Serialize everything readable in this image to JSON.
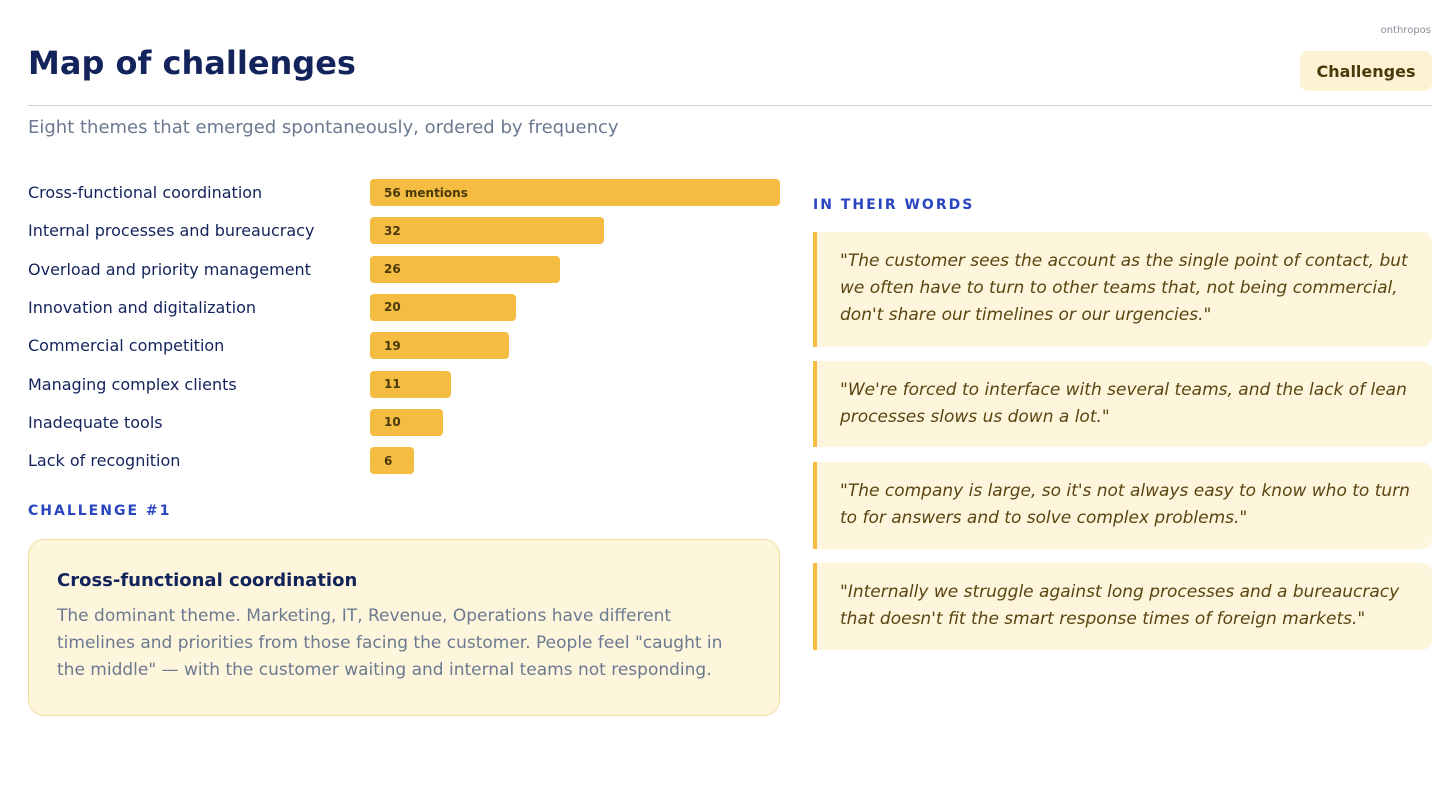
{
  "brand": "onthropos",
  "header": {
    "title": "Map of challenges",
    "tag": "Challenges",
    "subtitle": "Eight themes that emerged spontaneously, ordered by frequency"
  },
  "chart_data": {
    "type": "bar",
    "orientation": "horizontal",
    "categories": [
      "Cross-functional coordination",
      "Internal processes and bureaucracy",
      "Overload and priority management",
      "Innovation and digitalization",
      "Commercial competition",
      "Managing complex clients",
      "Inadequate tools",
      "Lack of recognition"
    ],
    "values": [
      56,
      32,
      26,
      20,
      19,
      11,
      10,
      6
    ],
    "value_labels": [
      "56 mentions",
      "32",
      "26",
      "20",
      "19",
      "11",
      "10",
      "6"
    ],
    "color": "#f5bc42"
  },
  "highlight": {
    "label": "CHALLENGE #1",
    "title": "Cross-functional coordination",
    "text": "The dominant theme. Marketing, IT, Revenue, Operations have different timelines and priorities from those facing the customer. People feel \"caught in the middle\" — with the customer waiting and internal teams not responding."
  },
  "quotes": {
    "label": "IN THEIR WORDS",
    "items": [
      "\"The customer sees the account as the single point of contact, but we often have to turn to other teams that, not being commercial, don't share our timelines or our urgencies.\"",
      "\"We're forced to interface with several teams, and the lack of lean processes slows us down a lot.\"",
      "\"The company is large, so it's not always easy to know who to turn to for answers and to solve complex problems.\"",
      "\"Internally we struggle against long processes and a bureaucracy that doesn't fit the smart response times of foreign markets.\""
    ]
  }
}
